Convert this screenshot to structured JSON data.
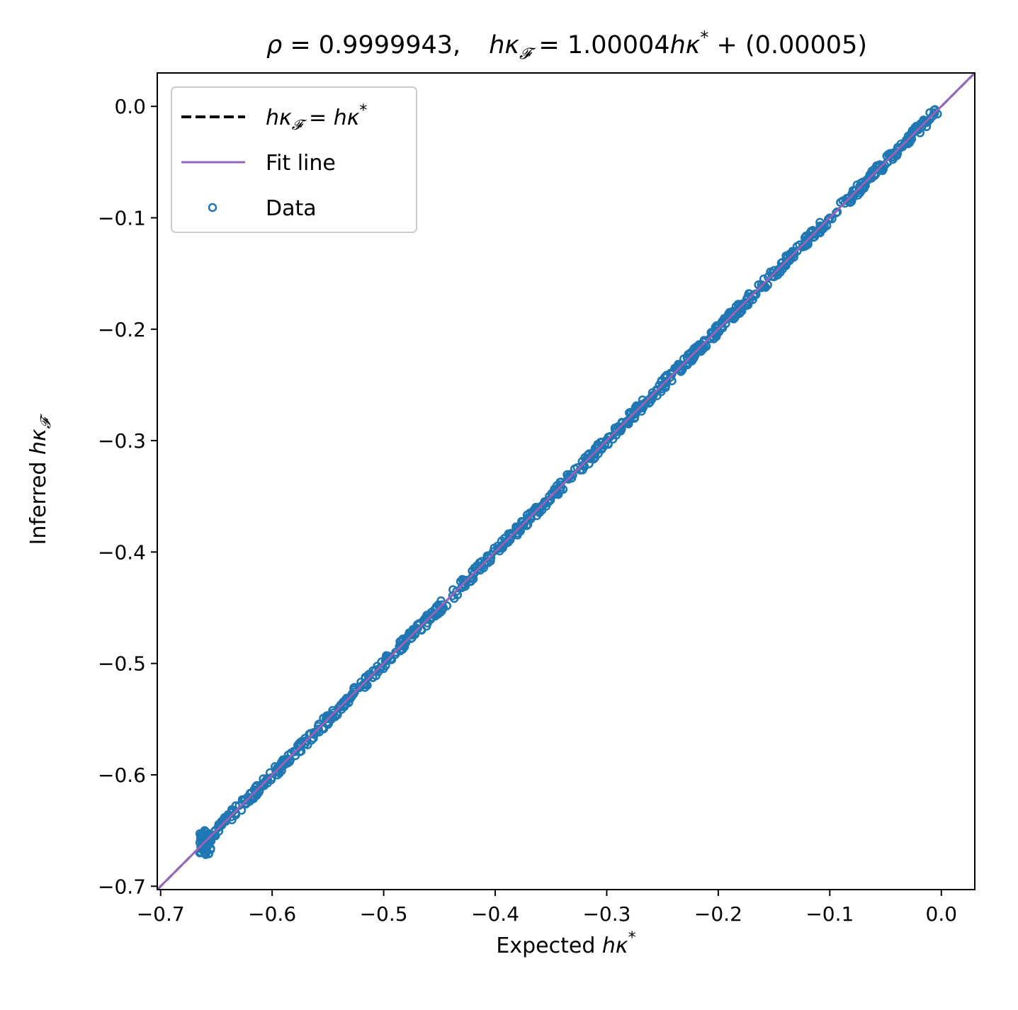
{
  "chart_data": {
    "type": "scatter",
    "title": {
      "rho_symbol": "ρ",
      "equals": " = ",
      "rho_value": "0.9999943,",
      "lhs_h": "hκ",
      "lhs_sub": "𝓕",
      "eq_mid": " = 1.00004",
      "rhs_h": "hκ",
      "rhs_sup": "*",
      "tail": " + (0.00005)"
    },
    "xlabel": {
      "text": "Expected ",
      "math": "hκ",
      "sup": "*"
    },
    "ylabel": {
      "text": "Inferred ",
      "math": "hκ",
      "sub": "𝓕"
    },
    "xlim": [
      -0.703,
      0.03
    ],
    "ylim": [
      -0.703,
      0.03
    ],
    "xticks": [
      {
        "v": -0.7,
        "label": "−0.7"
      },
      {
        "v": -0.6,
        "label": "−0.6"
      },
      {
        "v": -0.5,
        "label": "−0.5"
      },
      {
        "v": -0.4,
        "label": "−0.4"
      },
      {
        "v": -0.3,
        "label": "−0.3"
      },
      {
        "v": -0.2,
        "label": "−0.2"
      },
      {
        "v": -0.1,
        "label": "−0.1"
      },
      {
        "v": 0.0,
        "label": "0.0"
      }
    ],
    "yticks": [
      {
        "v": 0.0,
        "label": "0.0"
      },
      {
        "v": -0.1,
        "label": "−0.1"
      },
      {
        "v": -0.2,
        "label": "−0.2"
      },
      {
        "v": -0.3,
        "label": "−0.3"
      },
      {
        "v": -0.4,
        "label": "−0.4"
      },
      {
        "v": -0.5,
        "label": "−0.5"
      },
      {
        "v": -0.6,
        "label": "−0.6"
      },
      {
        "v": -0.7,
        "label": "−0.7"
      }
    ],
    "identity_line": {
      "slope": 1.0,
      "intercept": 0.0,
      "color": "#000000",
      "style": "dashed"
    },
    "fit_line": {
      "slope": 1.00004,
      "intercept": 5e-05,
      "color": "#9467bd"
    },
    "scatter": {
      "color": "#1f77b4",
      "x_range": [
        -0.665,
        -0.003
      ],
      "relation": "y ≈ x (tight band around identity)"
    },
    "legend": {
      "placement": "top-left",
      "entries": [
        {
          "key": "identity",
          "lhs": "hκ",
          "lhs_sub": "𝓕",
          "eq": " = ",
          "rhs": "hκ",
          "rhs_sup": "*"
        },
        {
          "key": "fit",
          "label": "Fit line"
        },
        {
          "key": "data",
          "label": "Data"
        }
      ]
    },
    "grid": false
  }
}
